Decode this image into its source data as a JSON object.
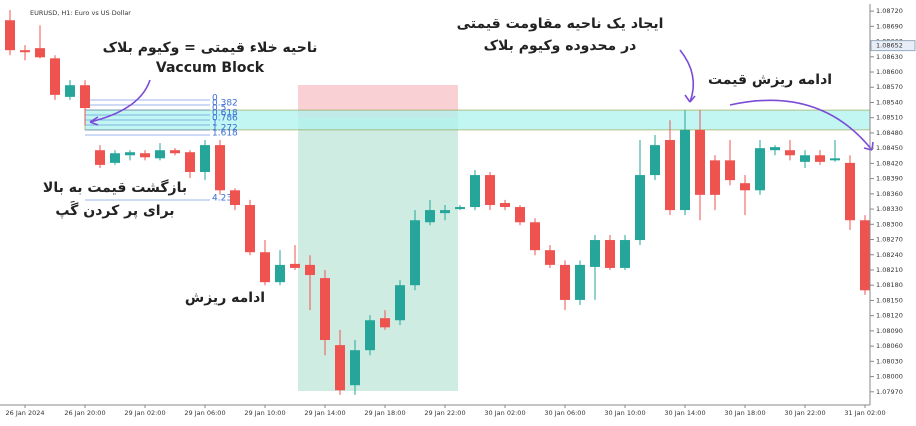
{
  "header": "EURUSD, H1: Euro vs US Dollar",
  "chart_data": {
    "type": "candlestick",
    "categories": [
      null,
      "26 Jan 2024",
      null,
      null,
      null,
      "26 Jan 20:00",
      null,
      null,
      null,
      "29 Jan 02:00",
      null,
      null,
      null,
      "29 Jan 06:00",
      null,
      null,
      null,
      "29 Jan 10:00",
      null,
      null,
      null,
      "29 Jan 14:00",
      null,
      null,
      null,
      "29 Jan 18:00",
      null,
      null,
      null,
      "29 Jan 22:00",
      null,
      null,
      null,
      "30 Jan 02:00",
      null,
      null,
      null,
      "30 Jan 06:00",
      null,
      null,
      null,
      "30 Jan 10:00",
      null,
      null,
      null,
      "30 Jan 14:00",
      null,
      null,
      null,
      "30 Jan 18:00",
      null,
      null,
      null,
      "30 Jan 22:00",
      null,
      null,
      null,
      "31 Jan 02:00"
    ],
    "open": [
      1.08702,
      1.08643,
      1.08647,
      1.08627,
      1.08551,
      1.08574,
      1.08446,
      1.08421,
      1.08436,
      1.0844,
      1.0843,
      1.08446,
      1.08442,
      1.08403,
      1.08456,
      1.08367,
      1.08338,
      1.08245,
      1.08186,
      1.08222,
      1.0822,
      1.08194,
      1.08062,
      1.07983,
      1.08052,
      1.08115,
      1.08111,
      1.0818,
      1.08304,
      1.08322,
      1.0833,
      1.08334,
      1.08397,
      1.08342,
      1.08334,
      1.08304,
      1.08249,
      1.0822,
      1.08151,
      1.08216,
      1.08269,
      1.08214,
      1.08269,
      1.08397,
      1.08466,
      1.08328,
      1.08486,
      1.08426,
      1.08426,
      1.08381,
      1.08367,
      1.08446,
      1.08446,
      1.08423,
      1.08436,
      1.08426,
      1.08421,
      1.08308
    ],
    "high": [
      1.08722,
      1.08653,
      1.08692,
      1.08633,
      1.08584,
      1.08584,
      1.08456,
      1.08446,
      1.08446,
      1.08446,
      1.0846,
      1.0845,
      1.08446,
      1.08466,
      1.08466,
      1.08371,
      1.08348,
      1.08269,
      1.08249,
      1.08259,
      1.08239,
      1.0821,
      1.08092,
      1.08072,
      1.08121,
      1.08131,
      1.0819,
      1.08328,
      1.08348,
      1.08338,
      1.08338,
      1.08407,
      1.08403,
      1.08348,
      1.08338,
      1.08312,
      1.08259,
      1.08229,
      1.08229,
      1.08279,
      1.08279,
      1.08279,
      1.08466,
      1.08476,
      1.08505,
      1.08525,
      1.08525,
      1.08436,
      1.08466,
      1.08397,
      1.08466,
      1.08456,
      1.08466,
      1.08446,
      1.08446,
      1.08466,
      1.08436,
      1.08318
    ],
    "low": [
      1.08633,
      1.08623,
      1.08627,
      1.08545,
      1.08545,
      1.08495,
      1.08411,
      1.08417,
      1.08426,
      1.08426,
      1.08426,
      1.08436,
      1.08391,
      1.08387,
      1.08358,
      1.08328,
      1.08239,
      1.0818,
      1.0818,
      1.0821,
      1.08131,
      1.08042,
      1.07964,
      1.07964,
      1.08042,
      1.08092,
      1.08101,
      1.0817,
      1.08298,
      1.08308,
      1.08328,
      1.08328,
      1.08328,
      1.08328,
      1.08298,
      1.08239,
      1.08214,
      1.08131,
      1.08141,
      1.08151,
      1.0821,
      1.0821,
      1.08259,
      1.08387,
      1.08318,
      1.08318,
      1.08308,
      1.08328,
      1.08377,
      1.08318,
      1.08358,
      1.08436,
      1.08426,
      1.08411,
      1.08417,
      1.08423,
      1.08289,
      1.08161
    ],
    "close": [
      1.08643,
      1.08639,
      1.08629,
      1.08555,
      1.08574,
      1.08529,
      1.08417,
      1.0844,
      1.08442,
      1.08432,
      1.08446,
      1.0844,
      1.08403,
      1.08456,
      1.08367,
      1.08338,
      1.08245,
      1.08186,
      1.0822,
      1.08214,
      1.082,
      1.08072,
      1.07973,
      1.08052,
      1.08111,
      1.08097,
      1.0818,
      1.08308,
      1.08328,
      1.08328,
      1.08334,
      1.08397,
      1.08338,
      1.08334,
      1.08304,
      1.08249,
      1.0822,
      1.08151,
      1.0822,
      1.08269,
      1.08214,
      1.08269,
      1.08397,
      1.08456,
      1.08328,
      1.08486,
      1.08358,
      1.08358,
      1.08387,
      1.08367,
      1.0845,
      1.08452,
      1.08436,
      1.08436,
      1.08423,
      1.0843,
      1.08308,
      1.0817
    ],
    "up_color": "#26a69a",
    "down_color": "#ef5350",
    "ylim": [
      1.07944,
      1.08734
    ],
    "yticks": [
      {
        "value": 1.0872,
        "label": "1.08720"
      },
      {
        "value": 1.0869,
        "label": "1.08690"
      },
      {
        "value": 1.0866,
        "label": "1.08660"
      },
      {
        "value": 1.0863,
        "label": "1.08630"
      },
      {
        "value": 1.086,
        "label": "1.08600"
      },
      {
        "value": 1.0857,
        "label": "1.08570"
      },
      {
        "value": 1.0854,
        "label": "1.08540"
      },
      {
        "value": 1.0851,
        "label": "1.08510"
      },
      {
        "value": 1.0848,
        "label": "1.08480"
      },
      {
        "value": 1.0845,
        "label": "1.08450"
      },
      {
        "value": 1.0842,
        "label": "1.08420"
      },
      {
        "value": 1.0839,
        "label": "1.08390"
      },
      {
        "value": 1.0836,
        "label": "1.08360"
      },
      {
        "value": 1.0833,
        "label": "1.08330"
      },
      {
        "value": 1.083,
        "label": "1.08300"
      },
      {
        "value": 1.0827,
        "label": "1.08270"
      },
      {
        "value": 1.0824,
        "label": "1.08240"
      },
      {
        "value": 1.0821,
        "label": "1.08210"
      },
      {
        "value": 1.0818,
        "label": "1.08180"
      },
      {
        "value": 1.0815,
        "label": "1.08150"
      },
      {
        "value": 1.0812,
        "label": "1.08120"
      },
      {
        "value": 1.0809,
        "label": "1.08090"
      },
      {
        "value": 1.0806,
        "label": "1.08060"
      },
      {
        "value": 1.0803,
        "label": "1.08030"
      },
      {
        "value": 1.08,
        "label": "1.08000"
      },
      {
        "value": 1.0797,
        "label": "1.07970"
      }
    ],
    "current_price": {
      "value": 1.08652,
      "label": "1.08652"
    },
    "vacuum_zone": [
      1.08525,
      1.08486
    ],
    "fib_labels": [
      "0",
      "0.382",
      "0.5",
      "0.618",
      "0.786",
      "1",
      "1.272",
      "1.618",
      "4.236"
    ],
    "annotations": [
      "ناحیه خلاء قیمتی = وکیوم بلاک",
      "Vaccum Block",
      "بازگشت قیمت به بالا",
      "برای پر کردن گَپ",
      "ادامه ریزش",
      "ایجاد یک ناحیه مقاومت قیمتی",
      "در محدوده وکیوم بلاک",
      "ادامه ریزش قیمت"
    ]
  }
}
